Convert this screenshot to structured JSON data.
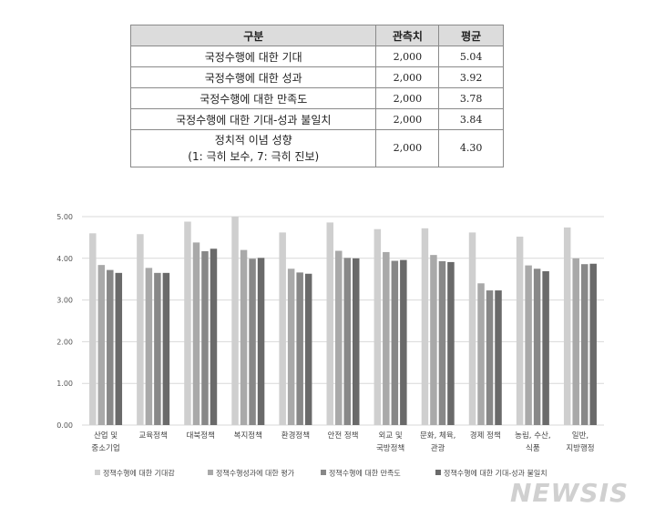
{
  "table": {
    "headers": [
      "구분",
      "관측치",
      "평균"
    ],
    "rows": [
      {
        "label": "국정수행에 대한 기대",
        "label2": "",
        "obs": "2,000",
        "avg": "5.04"
      },
      {
        "label": "국정수행에 대한 성과",
        "label2": "",
        "obs": "2,000",
        "avg": "3.92"
      },
      {
        "label": "국정수행에 대한 만족도",
        "label2": "",
        "obs": "2,000",
        "avg": "3.78"
      },
      {
        "label": "국정수행에 대한 기대-성과 불일치",
        "label2": "",
        "obs": "2,000",
        "avg": "3.84"
      },
      {
        "label": "정치적 이념 성향",
        "label2": "(1: 극히 보수, 7: 극히 진보)",
        "obs": "2,000",
        "avg": "4.30"
      }
    ]
  },
  "chart_data": {
    "type": "bar",
    "categories": [
      [
        "산업 및",
        "중소기업"
      ],
      [
        "교육정책"
      ],
      [
        "대북정책"
      ],
      [
        "복지정책"
      ],
      [
        "환경정책"
      ],
      [
        "안전 정책"
      ],
      [
        "외교 및",
        "국방정책"
      ],
      [
        "문화, 체육,",
        "관광"
      ],
      [
        "경제 정책"
      ],
      [
        "농림, 수산,",
        "식품"
      ],
      [
        "일반,",
        "지방행정"
      ]
    ],
    "series": [
      {
        "name": "정책수행에 대한 기대감",
        "color": "#cfcfcf",
        "values": [
          4.6,
          4.58,
          4.88,
          5.0,
          4.62,
          4.86,
          4.7,
          4.72,
          4.62,
          4.52,
          4.74
        ]
      },
      {
        "name": "정책수행성과에 대한 평가",
        "color": "#a9a9a9",
        "values": [
          3.84,
          3.77,
          4.38,
          4.2,
          3.75,
          4.18,
          4.15,
          4.08,
          3.4,
          3.83,
          4.0
        ]
      },
      {
        "name": "정책수행에 대한 만족도",
        "color": "#888888",
        "values": [
          3.72,
          3.65,
          4.17,
          3.99,
          3.66,
          4.01,
          3.94,
          3.93,
          3.23,
          3.75,
          3.86
        ]
      },
      {
        "name": "정책수행에 대한 기대-성과 불일치",
        "color": "#6a6a6a",
        "values": [
          3.65,
          3.65,
          4.23,
          4.01,
          3.63,
          4.0,
          3.96,
          3.91,
          3.23,
          3.69,
          3.87
        ]
      }
    ],
    "yticks": [
      "5.00",
      "4.00",
      "3.00",
      "2.00",
      "1.00",
      "0.00"
    ],
    "ylim": [
      0,
      5
    ],
    "grid": true,
    "legend_position": "bottom"
  },
  "watermark": "NEWSIS"
}
